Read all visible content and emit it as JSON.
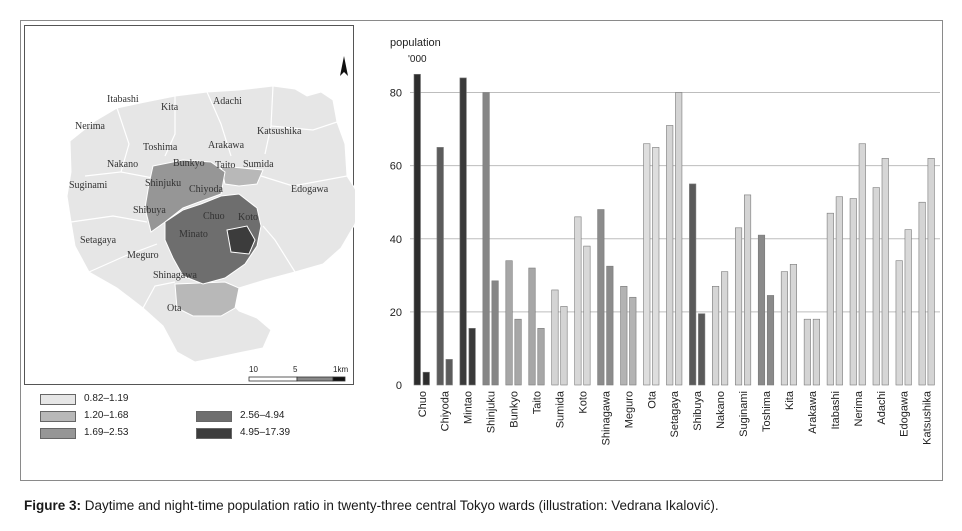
{
  "map": {
    "north_arrow": "north-arrow-icon",
    "wards": [
      {
        "name": "Itabashi"
      },
      {
        "name": "Kita"
      },
      {
        "name": "Adachi"
      },
      {
        "name": "Nerima"
      },
      {
        "name": "Katsushika"
      },
      {
        "name": "Toshima"
      },
      {
        "name": "Arakawa"
      },
      {
        "name": "Nakano"
      },
      {
        "name": "Bunkyo"
      },
      {
        "name": "Taito"
      },
      {
        "name": "Sumida"
      },
      {
        "name": "Suginami"
      },
      {
        "name": "Shinjuku"
      },
      {
        "name": "Chiyoda"
      },
      {
        "name": "Edogawa"
      },
      {
        "name": "Shibuya"
      },
      {
        "name": "Chuo"
      },
      {
        "name": "Koto"
      },
      {
        "name": "Setagaya"
      },
      {
        "name": "Minato"
      },
      {
        "name": "Meguro"
      },
      {
        "name": "Shinagawa"
      },
      {
        "name": "Ota"
      }
    ],
    "scale": {
      "left": "10",
      "mid": "5",
      "right": "1km"
    }
  },
  "legend": [
    {
      "label": "0.82–1.19",
      "color": "#e6e6e6"
    },
    {
      "label": "1.20–1.68",
      "color": "#b8b8b8"
    },
    {
      "label": "1.69–2.53",
      "color": "#969696"
    },
    {
      "label": "2.56–4.94",
      "color": "#6e6e6e"
    },
    {
      "label": "4.95–17.39",
      "color": "#3c3c3c"
    }
  ],
  "chart_data": {
    "type": "bar",
    "ylabel": "population",
    "yunit": "'000",
    "ylim": [
      0,
      90
    ],
    "yticks": [
      0,
      20,
      40,
      60,
      80
    ],
    "grid": true,
    "categories": [
      "Chuo",
      "Chiyoda",
      "Mintao",
      "Shinjuku",
      "Bunkyo",
      "Taito",
      "Sumida",
      "Koto",
      "Shinagawa",
      "Meguro",
      "Ota",
      "Setagaya",
      "Shibuya",
      "Nakano",
      "Suginami",
      "Toshima",
      "Kita",
      "Arakawa",
      "Itabashi",
      "Nerima",
      "Adachi",
      "Edogawa",
      "Katsushika"
    ],
    "series": [
      {
        "values": [
          85,
          65,
          84,
          80,
          34,
          32,
          26,
          46,
          48,
          27,
          66,
          71,
          55,
          27,
          43,
          41,
          31,
          18,
          47,
          51,
          54,
          34,
          50
        ]
      },
      {
        "values": [
          3.5,
          7,
          15.5,
          28.5,
          18,
          15.5,
          21.5,
          38,
          32.5,
          24,
          65,
          80,
          19.5,
          31,
          52,
          24.5,
          33,
          18,
          51.5,
          66,
          62,
          42.5,
          62
        ]
      }
    ],
    "colors": [
      "#2d2d2d",
      "#5c5c5c",
      "#3a3a3a",
      "#868686",
      "#a7a7a7",
      "#a7a7a7",
      "#d4d4d4",
      "#d8d8d8",
      "#8c8c8c",
      "#b3b3b3",
      "#dedede",
      "#d4d4d4",
      "#5a5a5a",
      "#d6d6d6",
      "#d4d4d4",
      "#8a8a8a",
      "#d6d6d6",
      "#d4d4d4",
      "#d6d6d6",
      "#d6d6d6",
      "#d6d6d6",
      "#d8d8d8",
      "#d4d4d4"
    ]
  },
  "caption": {
    "prefix": "Figure 3:",
    "text": " Daytime and night-time population ratio in twenty-three central Tokyo wards (illustration: Vedrana Ikalović)."
  }
}
